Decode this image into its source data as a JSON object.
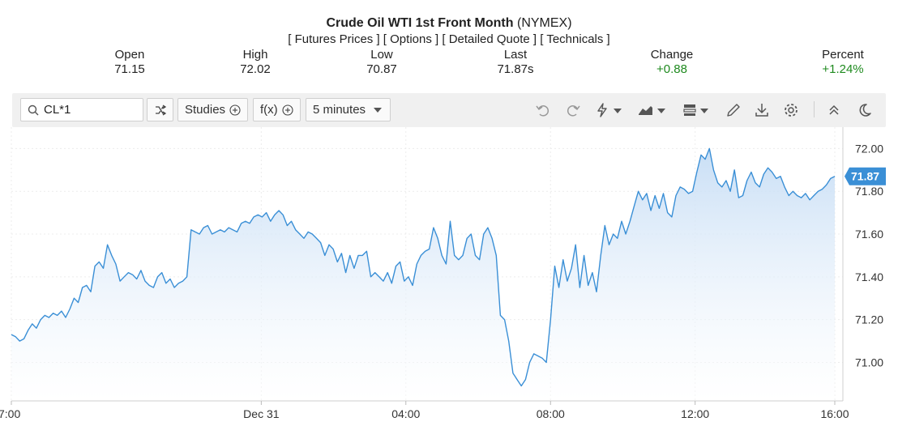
{
  "header": {
    "title_bold": "Crude Oil WTI 1st Front Month",
    "title_exchange": "(NYMEX)",
    "links": [
      "Futures Prices",
      "Options",
      "Detailed Quote",
      "Technicals"
    ]
  },
  "quote": {
    "open_label": "Open",
    "open_value": "71.15",
    "high_label": "High",
    "high_value": "72.02",
    "low_label": "Low",
    "low_value": "70.87",
    "last_label": "Last",
    "last_value": "71.87s",
    "change_label": "Change",
    "change_value": "+0.88",
    "percent_label": "Percent",
    "percent_value": "+1.24%",
    "positive_color": "#1e8a1e"
  },
  "toolbar": {
    "search_value": "CL*1",
    "studies_label": "Studies",
    "fx_label": "f(x)",
    "interval_label": "5 minutes",
    "icons": [
      "search-icon",
      "shuffle-icon",
      "plus-circle-icon",
      "undo-icon",
      "redo-icon",
      "lightning-icon",
      "chart-type-icon",
      "template-icon",
      "pencil-icon",
      "download-icon",
      "gear-icon",
      "collapse-icon",
      "moon-icon"
    ]
  },
  "chart_data": {
    "type": "area",
    "line_color": "#3a8fd6",
    "fill_color": "#cfe3f7",
    "last_value_label": "71.87",
    "ylim": [
      70.82,
      72.1
    ],
    "y_ticks": [
      "72.00",
      "71.80",
      "71.60",
      "71.40",
      "71.20",
      "71.00"
    ],
    "x_ticks": [
      {
        "label": "7:00",
        "pos": 0
      },
      {
        "label": "Dec 31",
        "pos": 0.3035
      },
      {
        "label": "04:00",
        "pos": 0.4791
      },
      {
        "label": "08:00",
        "pos": 0.6548
      },
      {
        "label": "12:00",
        "pos": 0.8304
      },
      {
        "label": "16:00",
        "pos": 1.0
      }
    ],
    "series": [
      {
        "values": [
          71.13,
          71.12,
          71.1,
          71.11,
          71.15,
          71.18,
          71.16,
          71.2,
          71.22,
          71.21,
          71.23,
          71.22,
          71.24,
          71.21,
          71.25,
          71.3,
          71.28,
          71.35,
          71.36,
          71.33,
          71.45,
          71.47,
          71.44,
          71.55,
          71.5,
          71.46,
          71.38,
          71.4,
          71.42,
          71.41,
          71.39,
          71.43,
          71.38,
          71.36,
          71.35,
          71.4,
          71.42,
          71.37,
          71.39,
          71.35,
          71.37,
          71.38,
          71.4,
          71.62,
          71.61,
          71.6,
          71.63,
          71.64,
          71.6,
          71.61,
          71.62,
          71.61,
          71.63,
          71.62,
          71.61,
          71.65,
          71.66,
          71.65,
          71.68,
          71.69,
          71.68,
          71.7,
          71.66,
          71.69,
          71.71,
          71.69,
          71.64,
          71.66,
          71.62,
          71.6,
          71.58,
          71.61,
          71.6,
          71.58,
          71.56,
          71.5,
          71.55,
          71.53,
          71.47,
          71.51,
          71.42,
          71.5,
          71.44,
          71.5,
          71.5,
          71.52,
          71.4,
          71.42,
          71.4,
          71.38,
          71.42,
          71.37,
          71.45,
          71.47,
          71.38,
          71.4,
          71.36,
          71.46,
          71.5,
          71.52,
          71.53,
          71.63,
          71.58,
          71.5,
          71.46,
          71.66,
          71.5,
          71.48,
          71.5,
          71.58,
          71.6,
          71.5,
          71.48,
          71.6,
          71.63,
          71.58,
          71.5,
          71.22,
          71.2,
          71.1,
          70.95,
          70.92,
          70.89,
          70.92,
          71.0,
          71.04,
          71.03,
          71.02,
          71.0,
          71.2,
          71.45,
          71.35,
          71.48,
          71.38,
          71.44,
          71.55,
          71.35,
          71.5,
          71.36,
          71.42,
          71.33,
          71.5,
          71.64,
          71.55,
          71.6,
          71.58,
          71.66,
          71.6,
          71.66,
          71.73,
          71.8,
          71.76,
          71.79,
          71.71,
          71.78,
          71.72,
          71.79,
          71.7,
          71.68,
          71.78,
          71.82,
          71.81,
          71.79,
          71.8,
          71.89,
          71.97,
          71.95,
          72.0,
          71.9,
          71.84,
          71.82,
          71.85,
          71.8,
          71.9,
          71.77,
          71.78,
          71.85,
          71.89,
          71.84,
          71.82,
          71.88,
          71.91,
          71.89,
          71.86,
          71.87,
          71.82,
          71.78,
          71.8,
          71.78,
          71.77,
          71.79,
          71.76,
          71.78,
          71.8,
          71.81,
          71.83,
          71.86,
          71.87
        ]
      }
    ]
  }
}
